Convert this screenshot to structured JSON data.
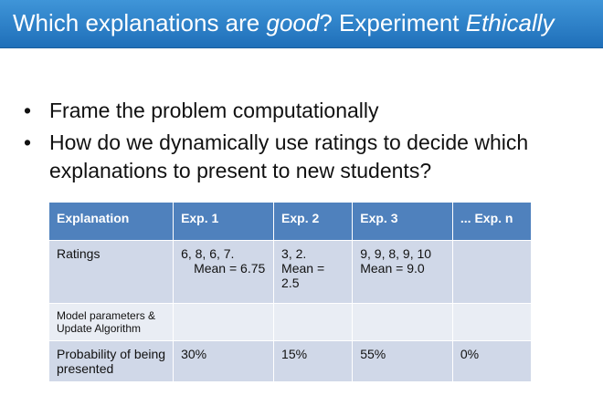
{
  "title": {
    "part1": "Which explanations are ",
    "part2": "good",
    "part3": "? Experiment ",
    "part4": "Ethically"
  },
  "bullets": [
    "Frame the problem computationally",
    "How do we dynamically use ratings to decide which explanations to present to new students?"
  ],
  "table": {
    "headers": [
      "Explanation",
      "Exp. 1",
      "Exp. 2",
      "Exp. 3",
      "... Exp. n"
    ],
    "ratings": {
      "label": "Ratings",
      "exp1": "6, 8, 6, 7.",
      "exp1_mean": "Mean = 6.75",
      "exp2": "3, 2.",
      "exp2_mean": "Mean = 2.5",
      "exp3": "9, 9, 8, 9, 10",
      "exp3_mean": "Mean = 9.0",
      "expn": ""
    },
    "model": {
      "label": "Model parameters & Update Algorithm"
    },
    "probability": {
      "label": "Probability of being presented",
      "values": [
        "30%",
        "15%",
        "55%",
        "0%"
      ]
    }
  }
}
